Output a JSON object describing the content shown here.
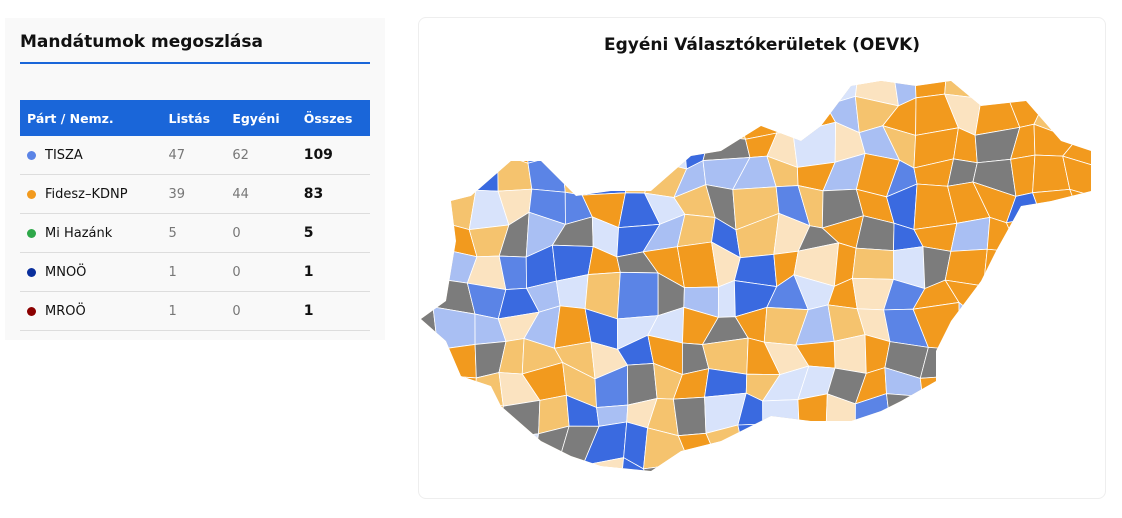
{
  "seats": {
    "title": "Mandátumok megoszlása",
    "columns": [
      "Párt / Nemz.",
      "Listás",
      "Egyéni",
      "Összes"
    ],
    "rows": [
      {
        "party": "TISZA",
        "color": "#5b84e6",
        "list": 47,
        "individual": 62,
        "total": 109
      },
      {
        "party": "Fidesz–KDNP",
        "color": "#f29a1e",
        "list": 39,
        "individual": 44,
        "total": 83
      },
      {
        "party": "Mi Hazánk",
        "color": "#2ea84a",
        "list": 5,
        "individual": 0,
        "total": 5
      },
      {
        "party": "MNOÖ",
        "color": "#0a2f9c",
        "list": 1,
        "individual": 0,
        "total": 1
      },
      {
        "party": "MROÖ",
        "color": "#8b0000",
        "list": 1,
        "individual": 0,
        "total": 1
      }
    ]
  },
  "map": {
    "title": "Egyéni Választókerületek (OEVK)"
  }
}
